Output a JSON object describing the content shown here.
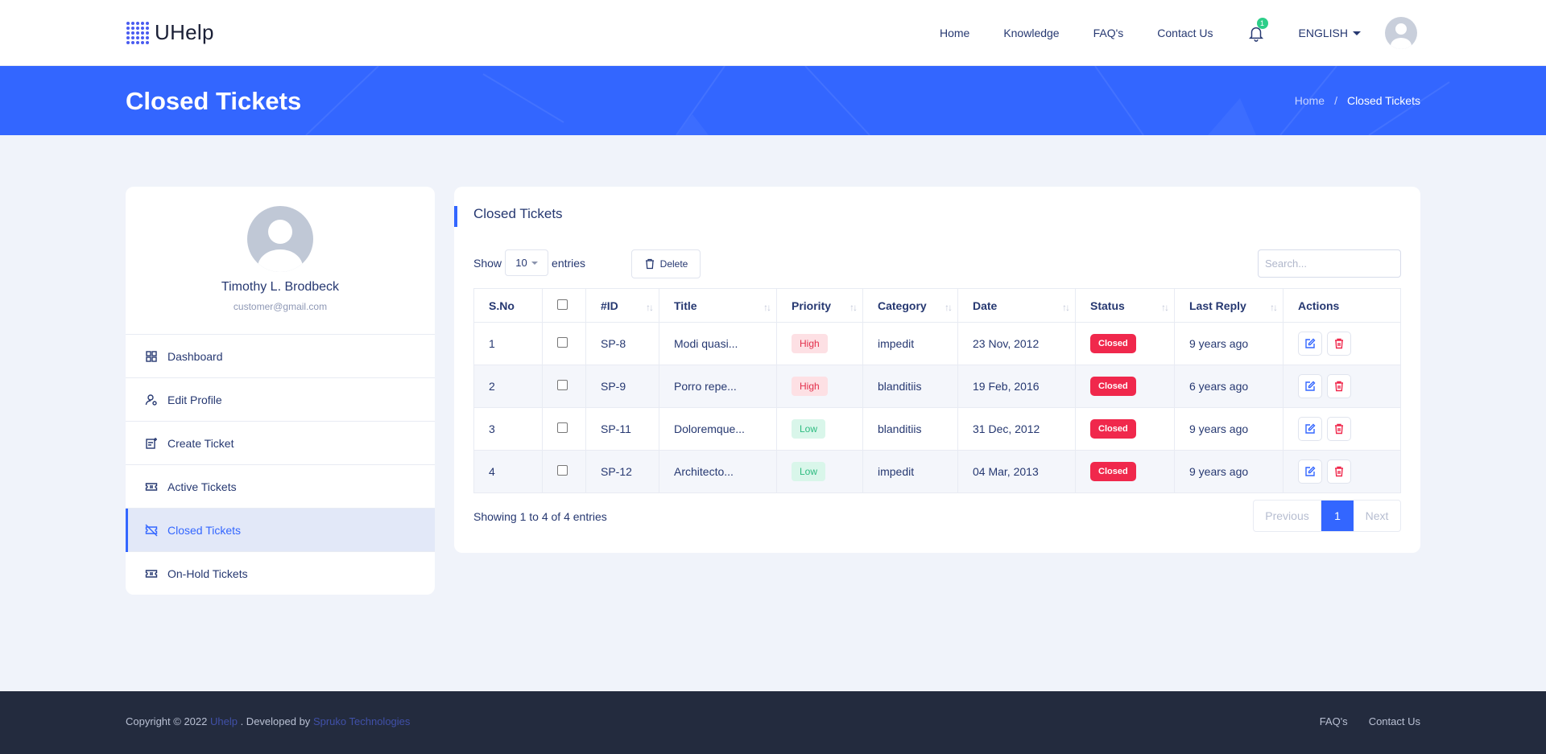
{
  "brand": {
    "name": "UHelp",
    "color": "#3366ff"
  },
  "nav": {
    "links": [
      "Home",
      "Knowledge",
      "FAQ's",
      "Contact Us"
    ],
    "notification_count": "1",
    "language": "ENGLISH"
  },
  "banner": {
    "title": "Closed Tickets",
    "breadcrumb": {
      "home": "Home",
      "separator": "/",
      "current": "Closed Tickets"
    }
  },
  "profile": {
    "name": "Timothy L. Brodbeck",
    "email": "customer@gmail.com"
  },
  "sidebar": {
    "items": [
      {
        "label": "Dashboard",
        "icon": "grid-icon"
      },
      {
        "label": "Edit Profile",
        "icon": "user-gear-icon"
      },
      {
        "label": "Create Ticket",
        "icon": "ticket-add-icon"
      },
      {
        "label": "Active Tickets",
        "icon": "ticket-icon"
      },
      {
        "label": "Closed Tickets",
        "icon": "ticket-off-icon",
        "active": true
      },
      {
        "label": "On-Hold Tickets",
        "icon": "ticket-icon"
      }
    ]
  },
  "card": {
    "title": "Closed Tickets",
    "show_label": "Show",
    "entries_value": "10",
    "entries_label": "entries",
    "delete_label": "Delete",
    "search_placeholder": "Search..."
  },
  "table": {
    "headers": [
      "S.No",
      "",
      "#ID",
      "Title",
      "Priority",
      "Category",
      "Date",
      "Status",
      "Last Reply",
      "Actions"
    ],
    "rows": [
      {
        "sno": "1",
        "id": "SP-8",
        "title": "Modi quasi...",
        "priority": "High",
        "category": "impedit",
        "date": "23 Nov, 2012",
        "status": "Closed",
        "last_reply": "9 years ago"
      },
      {
        "sno": "2",
        "id": "SP-9",
        "title": "Porro repe...",
        "priority": "High",
        "category": "blanditiis",
        "date": "19 Feb, 2016",
        "status": "Closed",
        "last_reply": "6 years ago"
      },
      {
        "sno": "3",
        "id": "SP-11",
        "title": "Doloremque...",
        "priority": "Low",
        "category": "blanditiis",
        "date": "31 Dec, 2012",
        "status": "Closed",
        "last_reply": "9 years ago"
      },
      {
        "sno": "4",
        "id": "SP-12",
        "title": "Architecto...",
        "priority": "Low",
        "category": "impedit",
        "date": "04 Mar, 2013",
        "status": "Closed",
        "last_reply": "9 years ago"
      }
    ]
  },
  "pagination": {
    "info": "Showing 1 to 4 of 4 entries",
    "previous": "Previous",
    "page": "1",
    "next": "Next"
  },
  "footer": {
    "copyright_prefix": "Copyright © 2022",
    "brand_link": "Uhelp",
    "developed_by": ". Developed by",
    "developer_link": "Spruko Technologies",
    "links": [
      "FAQ's",
      "Contact Us"
    ]
  }
}
